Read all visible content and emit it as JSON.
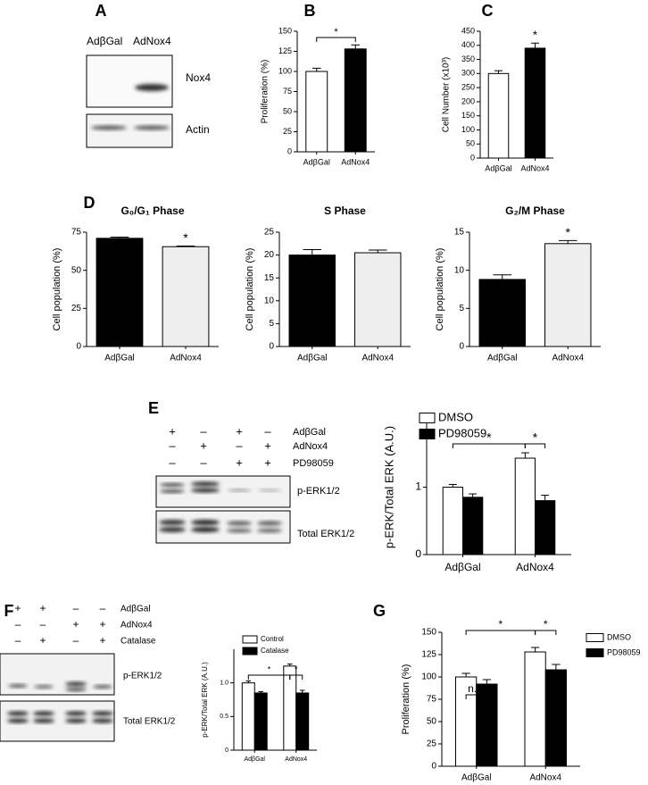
{
  "panel_labels": [
    "A",
    "B",
    "C",
    "D",
    "E",
    "F",
    "G"
  ],
  "blots": {
    "A": {
      "lanes": [
        "AdβGal",
        "AdNox4"
      ],
      "rows": [
        "Nox4",
        "Actin"
      ]
    },
    "E": {
      "conditions": [
        {
          "name": "AdβGal",
          "signs": [
            "+",
            "–",
            "+",
            "–"
          ]
        },
        {
          "name": "AdNox4",
          "signs": [
            "–",
            "+",
            "–",
            "+"
          ]
        },
        {
          "name": "PD98059",
          "signs": [
            "–",
            "–",
            "+",
            "+"
          ]
        }
      ],
      "rows": [
        "p-ERK1/2",
        "Total ERK1/2"
      ]
    },
    "F": {
      "conditions": [
        {
          "name": "AdβGal",
          "signs": [
            "+",
            "+",
            "–",
            "–"
          ]
        },
        {
          "name": "AdNox4",
          "signs": [
            "–",
            "–",
            "+",
            "+"
          ]
        },
        {
          "name": "Catalase",
          "signs": [
            "–",
            "+",
            "–",
            "+"
          ]
        }
      ],
      "rows": [
        "p-ERK1/2",
        "Total ERK1/2"
      ]
    }
  },
  "chart_data": [
    {
      "type": "bar",
      "ylabel": "Proliferation (%)",
      "categories": [
        "AdβGal",
        "AdNox4"
      ],
      "values": [
        100,
        128
      ],
      "errors": [
        4,
        5
      ],
      "colors": [
        "#ffffff",
        "#000000"
      ],
      "ylim": [
        0,
        150
      ],
      "yticks": [
        0,
        25,
        50,
        75,
        100,
        125,
        150
      ],
      "annotations": [
        "*"
      ]
    },
    {
      "type": "bar",
      "ylabel": "Cell Number (x10³)",
      "categories": [
        "AdβGal",
        "AdNox4"
      ],
      "values": [
        300,
        390
      ],
      "errors": [
        10,
        18
      ],
      "colors": [
        "#ffffff",
        "#000000"
      ],
      "ylim": [
        0,
        450
      ],
      "yticks": [
        0,
        50,
        100,
        150,
        200,
        250,
        300,
        350,
        400,
        450
      ],
      "annotations": [
        "*"
      ]
    },
    {
      "type": "bar",
      "title": "G₀/G₁ Phase",
      "ylabel": "Cell population (%)",
      "categories": [
        "AdβGal",
        "AdNox4"
      ],
      "values": [
        71,
        65.5
      ],
      "errors": [
        0.8,
        0.4
      ],
      "colors": [
        "#000000",
        "#eeeeee"
      ],
      "ylim": [
        0,
        75
      ],
      "yticks": [
        0,
        25,
        50,
        75
      ],
      "annotations": [
        "*"
      ]
    },
    {
      "type": "bar",
      "title": "S Phase",
      "ylabel": "Cell population (%)",
      "categories": [
        "AdβGal",
        "AdNox4"
      ],
      "values": [
        20,
        20.5
      ],
      "errors": [
        1.2,
        0.6
      ],
      "colors": [
        "#000000",
        "#eeeeee"
      ],
      "ylim": [
        0,
        25
      ],
      "yticks": [
        0,
        5,
        10,
        15,
        20,
        25
      ]
    },
    {
      "type": "bar",
      "title": "G₂/M Phase",
      "ylabel": "Cell population (%)",
      "categories": [
        "AdβGal",
        "AdNox4"
      ],
      "values": [
        8.8,
        13.5
      ],
      "errors": [
        0.6,
        0.4
      ],
      "colors": [
        "#000000",
        "#eeeeee"
      ],
      "ylim": [
        0,
        15
      ],
      "yticks": [
        0,
        5,
        10,
        15
      ],
      "annotations": [
        "*"
      ]
    },
    {
      "type": "bar",
      "ylabel": "p-ERK/Total ERK (A.U.)",
      "categories": [
        "AdβGal",
        "AdNox4"
      ],
      "series": [
        {
          "name": "DMSO",
          "color": "#ffffff",
          "values": [
            1.0,
            1.43
          ],
          "errors": [
            0.04,
            0.08
          ]
        },
        {
          "name": "PD98059",
          "color": "#000000",
          "values": [
            0.85,
            0.8
          ],
          "errors": [
            0.05,
            0.08
          ]
        }
      ],
      "ylim": [
        0,
        2
      ],
      "yticks": [
        0,
        1
      ],
      "annotations": [
        "*",
        "*"
      ]
    },
    {
      "type": "bar",
      "ylabel": "p-ERK/Total ERK (A.U.)",
      "categories": [
        "AdβGal",
        "AdNox4"
      ],
      "series": [
        {
          "name": "Control",
          "color": "#ffffff",
          "values": [
            1.0,
            1.25
          ],
          "errors": [
            0.03,
            0.03
          ]
        },
        {
          "name": "Catalase",
          "color": "#000000",
          "values": [
            0.85,
            0.85
          ],
          "errors": [
            0.02,
            0.04
          ]
        }
      ],
      "ylim": [
        0,
        1.5
      ],
      "yticks": [
        0,
        0.5,
        {
          "value": 1,
          "label": "1.0"
        }
      ],
      "annotations": [
        "*",
        "*"
      ]
    },
    {
      "type": "bar",
      "ylabel": "Proliferation (%)",
      "categories": [
        "AdβGal",
        "AdNox4"
      ],
      "series": [
        {
          "name": "DMSO",
          "color": "#ffffff",
          "values": [
            100,
            128
          ],
          "errors": [
            4,
            5
          ]
        },
        {
          "name": "PD98059",
          "color": "#000000",
          "values": [
            92,
            108
          ],
          "errors": [
            5,
            6
          ]
        }
      ],
      "ylim": [
        0,
        150
      ],
      "yticks": [
        0,
        25,
        50,
        75,
        100,
        125,
        150
      ],
      "annotations": [
        "n.s.",
        "*",
        "*"
      ]
    }
  ]
}
